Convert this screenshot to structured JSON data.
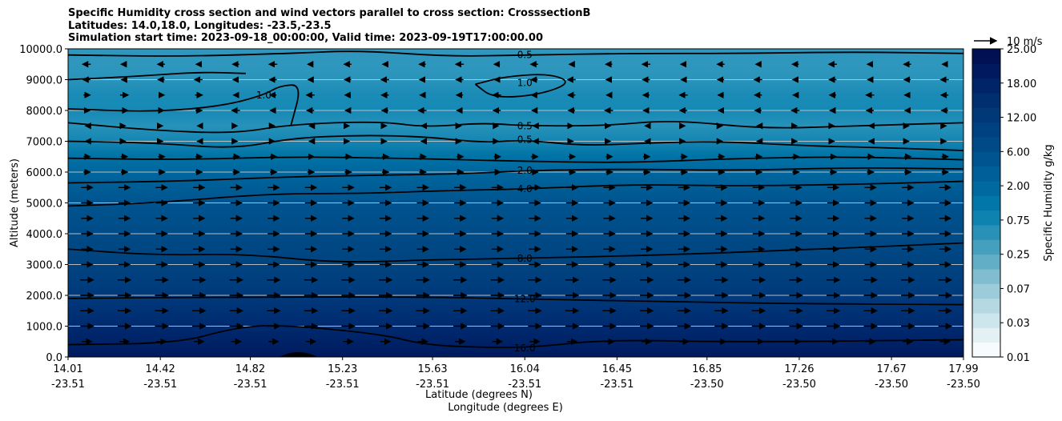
{
  "title": {
    "line1": "Specific Humidity cross section and wind vectors parallel to cross section: CrosssectionB",
    "line2": "Latitudes: 14.0,18.0, Longitudes: -23.5,-23.5",
    "line3": "Simulation start time: 2023-09-18_00:00:00, Valid time: 2023-09-19T17:00:00.00"
  },
  "chart_data": {
    "type": "heatmap",
    "title": "Specific Humidity cross section and wind vectors parallel to cross section: CrosssectionB",
    "ylabel": "Altitude (meters)",
    "xlabel": "Latitude (degrees N)",
    "xlabel2": "Longitude (degrees E)",
    "ylim": [
      0,
      10000
    ],
    "yticks": [
      "0.0",
      "1000.0",
      "2000.0",
      "3000.0",
      "4000.0",
      "5000.0",
      "6000.0",
      "7000.0",
      "8000.0",
      "9000.0",
      "10000.0"
    ],
    "ytick_values": [
      0,
      1000,
      2000,
      3000,
      4000,
      5000,
      6000,
      7000,
      8000,
      9000,
      10000
    ],
    "xlim": [
      14.01,
      17.99
    ],
    "xtick_values": [
      14.01,
      14.42,
      14.82,
      15.23,
      15.63,
      16.04,
      16.45,
      16.85,
      17.26,
      17.67,
      17.99
    ],
    "xticks_lat": [
      "14.01",
      "14.42",
      "14.82",
      "15.23",
      "15.63",
      "16.04",
      "16.45",
      "16.85",
      "17.26",
      "17.67",
      "17.99"
    ],
    "xticks_lon": [
      "-23.51",
      "-23.51",
      "-23.51",
      "-23.51",
      "-23.51",
      "-23.51",
      "-23.51",
      "-23.50",
      "-23.50",
      "-23.50",
      "-23.50"
    ],
    "grid": "horizontal",
    "colorbar": {
      "label": "Specific Humidity g/kg",
      "tick_labels": [
        "0.01",
        "0.03",
        "0.07",
        "0.25",
        "0.75",
        "2.00",
        "6.00",
        "12.00",
        "18.00",
        "25.00"
      ],
      "colors": [
        "#f7fbfd",
        "#e3f0f4",
        "#cde5ec",
        "#b5d8e3",
        "#9ccbd9",
        "#80bdd0",
        "#62aec6",
        "#45a0be",
        "#2991b7",
        "#0e83b0",
        "#0077a8",
        "#006aa0",
        "#005f98",
        "#005490",
        "#004a88",
        "#004181",
        "#003878",
        "#002f70",
        "#002468",
        "#00195f",
        "#001052"
      ]
    },
    "background_levels": [
      {
        "alt": 0,
        "color": "#001a5e"
      },
      {
        "alt": 1000,
        "color": "#002a6f"
      },
      {
        "alt": 2000,
        "color": "#003a7c"
      },
      {
        "alt": 3000,
        "color": "#00437f"
      },
      {
        "alt": 4000,
        "color": "#004b87"
      },
      {
        "alt": 5000,
        "color": "#00548f"
      },
      {
        "alt": 5500,
        "color": "#005d96"
      },
      {
        "alt": 6000,
        "color": "#00669d"
      },
      {
        "alt": 6500,
        "color": "#0073a6"
      },
      {
        "alt": 7000,
        "color": "#1485b2"
      },
      {
        "alt": 7500,
        "color": "#2792ba"
      },
      {
        "alt": 8000,
        "color": "#1589b5"
      },
      {
        "alt": 8500,
        "color": "#1a8bb6"
      },
      {
        "alt": 9000,
        "color": "#2a94bb"
      },
      {
        "alt": 9500,
        "color": "#2f97bd"
      },
      {
        "alt": 10000,
        "color": "#2f97bd"
      }
    ],
    "contours": [
      {
        "level": "16.0",
        "label_x": 16.04,
        "label_y": 290,
        "points": [
          [
            14.01,
            400
          ],
          [
            14.5,
            450
          ],
          [
            14.75,
            950
          ],
          [
            14.95,
            1050
          ],
          [
            15.4,
            750
          ],
          [
            15.6,
            380
          ],
          [
            15.9,
            300
          ],
          [
            16.1,
            330
          ],
          [
            16.4,
            560
          ],
          [
            17.0,
            480
          ],
          [
            17.99,
            560
          ]
        ]
      },
      {
        "level": "12.0",
        "label_x": 16.04,
        "label_y": 1880,
        "points": [
          [
            14.01,
            1900
          ],
          [
            14.8,
            1950
          ],
          [
            15.6,
            1950
          ],
          [
            16.04,
            1880
          ],
          [
            16.5,
            1820
          ],
          [
            17.2,
            1730
          ],
          [
            17.99,
            1700
          ]
        ]
      },
      {
        "level": "8.0",
        "label_x": 16.04,
        "label_y": 3200,
        "points": [
          [
            14.01,
            3500
          ],
          [
            14.4,
            3300
          ],
          [
            14.8,
            3350
          ],
          [
            15.2,
            3050
          ],
          [
            15.6,
            3150
          ],
          [
            16.04,
            3200
          ],
          [
            16.6,
            3300
          ],
          [
            17.2,
            3450
          ],
          [
            17.99,
            3700
          ]
        ]
      },
      {
        "level": "4.0",
        "label_x": 16.04,
        "label_y": 5450,
        "points": [
          [
            14.01,
            4900
          ],
          [
            14.4,
            5000
          ],
          [
            14.9,
            5300
          ],
          [
            15.3,
            5300
          ],
          [
            15.7,
            5400
          ],
          [
            16.04,
            5450
          ],
          [
            16.5,
            5600
          ],
          [
            17.0,
            5550
          ],
          [
            17.5,
            5600
          ],
          [
            17.99,
            5700
          ]
        ]
      },
      {
        "level": "2.0",
        "label_x": 16.04,
        "label_y": 6050,
        "points": [
          [
            14.01,
            5650
          ],
          [
            14.5,
            5700
          ],
          [
            15.0,
            5850
          ],
          [
            15.4,
            5900
          ],
          [
            15.8,
            5950
          ],
          [
            16.04,
            6050
          ],
          [
            16.5,
            6100
          ],
          [
            17.0,
            6050
          ],
          [
            17.5,
            6150
          ],
          [
            17.99,
            6100
          ]
        ]
      },
      {
        "level": "",
        "points": [
          [
            14.01,
            6450
          ],
          [
            14.5,
            6400
          ],
          [
            15.0,
            6500
          ],
          [
            15.5,
            6450
          ],
          [
            16.04,
            6350
          ],
          [
            16.5,
            6300
          ],
          [
            17.0,
            6450
          ],
          [
            17.5,
            6500
          ],
          [
            17.99,
            6400
          ]
        ]
      },
      {
        "level": "0.5",
        "label_x": 16.04,
        "label_y": 7050,
        "points": [
          [
            14.01,
            7000
          ],
          [
            14.4,
            6950
          ],
          [
            14.75,
            6750
          ],
          [
            15.0,
            7100
          ],
          [
            15.3,
            7200
          ],
          [
            15.6,
            7150
          ],
          [
            15.85,
            6950
          ],
          [
            16.04,
            7050
          ],
          [
            16.3,
            6850
          ],
          [
            16.6,
            6950
          ],
          [
            16.9,
            7000
          ],
          [
            17.3,
            6850
          ],
          [
            17.6,
            6800
          ],
          [
            17.99,
            6700
          ]
        ]
      },
      {
        "level": "0.5",
        "label_x": 16.04,
        "label_y": 7500,
        "points": [
          [
            14.01,
            7600
          ],
          [
            14.4,
            7350
          ],
          [
            14.75,
            7250
          ],
          [
            15.0,
            7550
          ],
          [
            15.4,
            7650
          ],
          [
            15.6,
            7450
          ],
          [
            15.85,
            7600
          ],
          [
            16.04,
            7500
          ],
          [
            16.4,
            7500
          ],
          [
            16.7,
            7700
          ],
          [
            17.1,
            7400
          ],
          [
            17.5,
            7500
          ],
          [
            17.99,
            7600
          ]
        ]
      },
      {
        "level": "1.0",
        "label_x": 16.04,
        "label_y": 8900,
        "points": [
          [
            15.82,
            8850
          ],
          [
            15.95,
            9100
          ],
          [
            16.15,
            9200
          ],
          [
            16.25,
            8900
          ],
          [
            16.1,
            8500
          ],
          [
            15.9,
            8400
          ],
          [
            15.82,
            8850
          ]
        ]
      },
      {
        "level": "",
        "points": [
          [
            14.01,
            9000
          ],
          [
            14.3,
            9100
          ],
          [
            14.6,
            9250
          ],
          [
            14.8,
            9200
          ]
        ]
      },
      {
        "level": "1.0",
        "label_x": 14.88,
        "label_y": 8500,
        "points": [
          [
            14.01,
            8050
          ],
          [
            14.4,
            7950
          ],
          [
            14.7,
            8150
          ],
          [
            14.88,
            8500
          ],
          [
            14.95,
            8800
          ],
          [
            15.05,
            8850
          ],
          [
            15.0,
            7500
          ]
        ]
      },
      {
        "level": "0.5",
        "label_x": 16.04,
        "label_y": 9800,
        "points": [
          [
            14.01,
            9800
          ],
          [
            14.5,
            9750
          ],
          [
            15.0,
            9850
          ],
          [
            15.3,
            9950
          ],
          [
            15.7,
            9750
          ],
          [
            16.04,
            9800
          ],
          [
            16.5,
            9850
          ],
          [
            17.0,
            9850
          ],
          [
            17.5,
            9900
          ],
          [
            17.99,
            9850
          ]
        ]
      }
    ],
    "wind_vectors": {
      "reference_label": "10 m/s",
      "description": "eastward arrows below ~6500 m, mostly westward arrows above"
    }
  }
}
